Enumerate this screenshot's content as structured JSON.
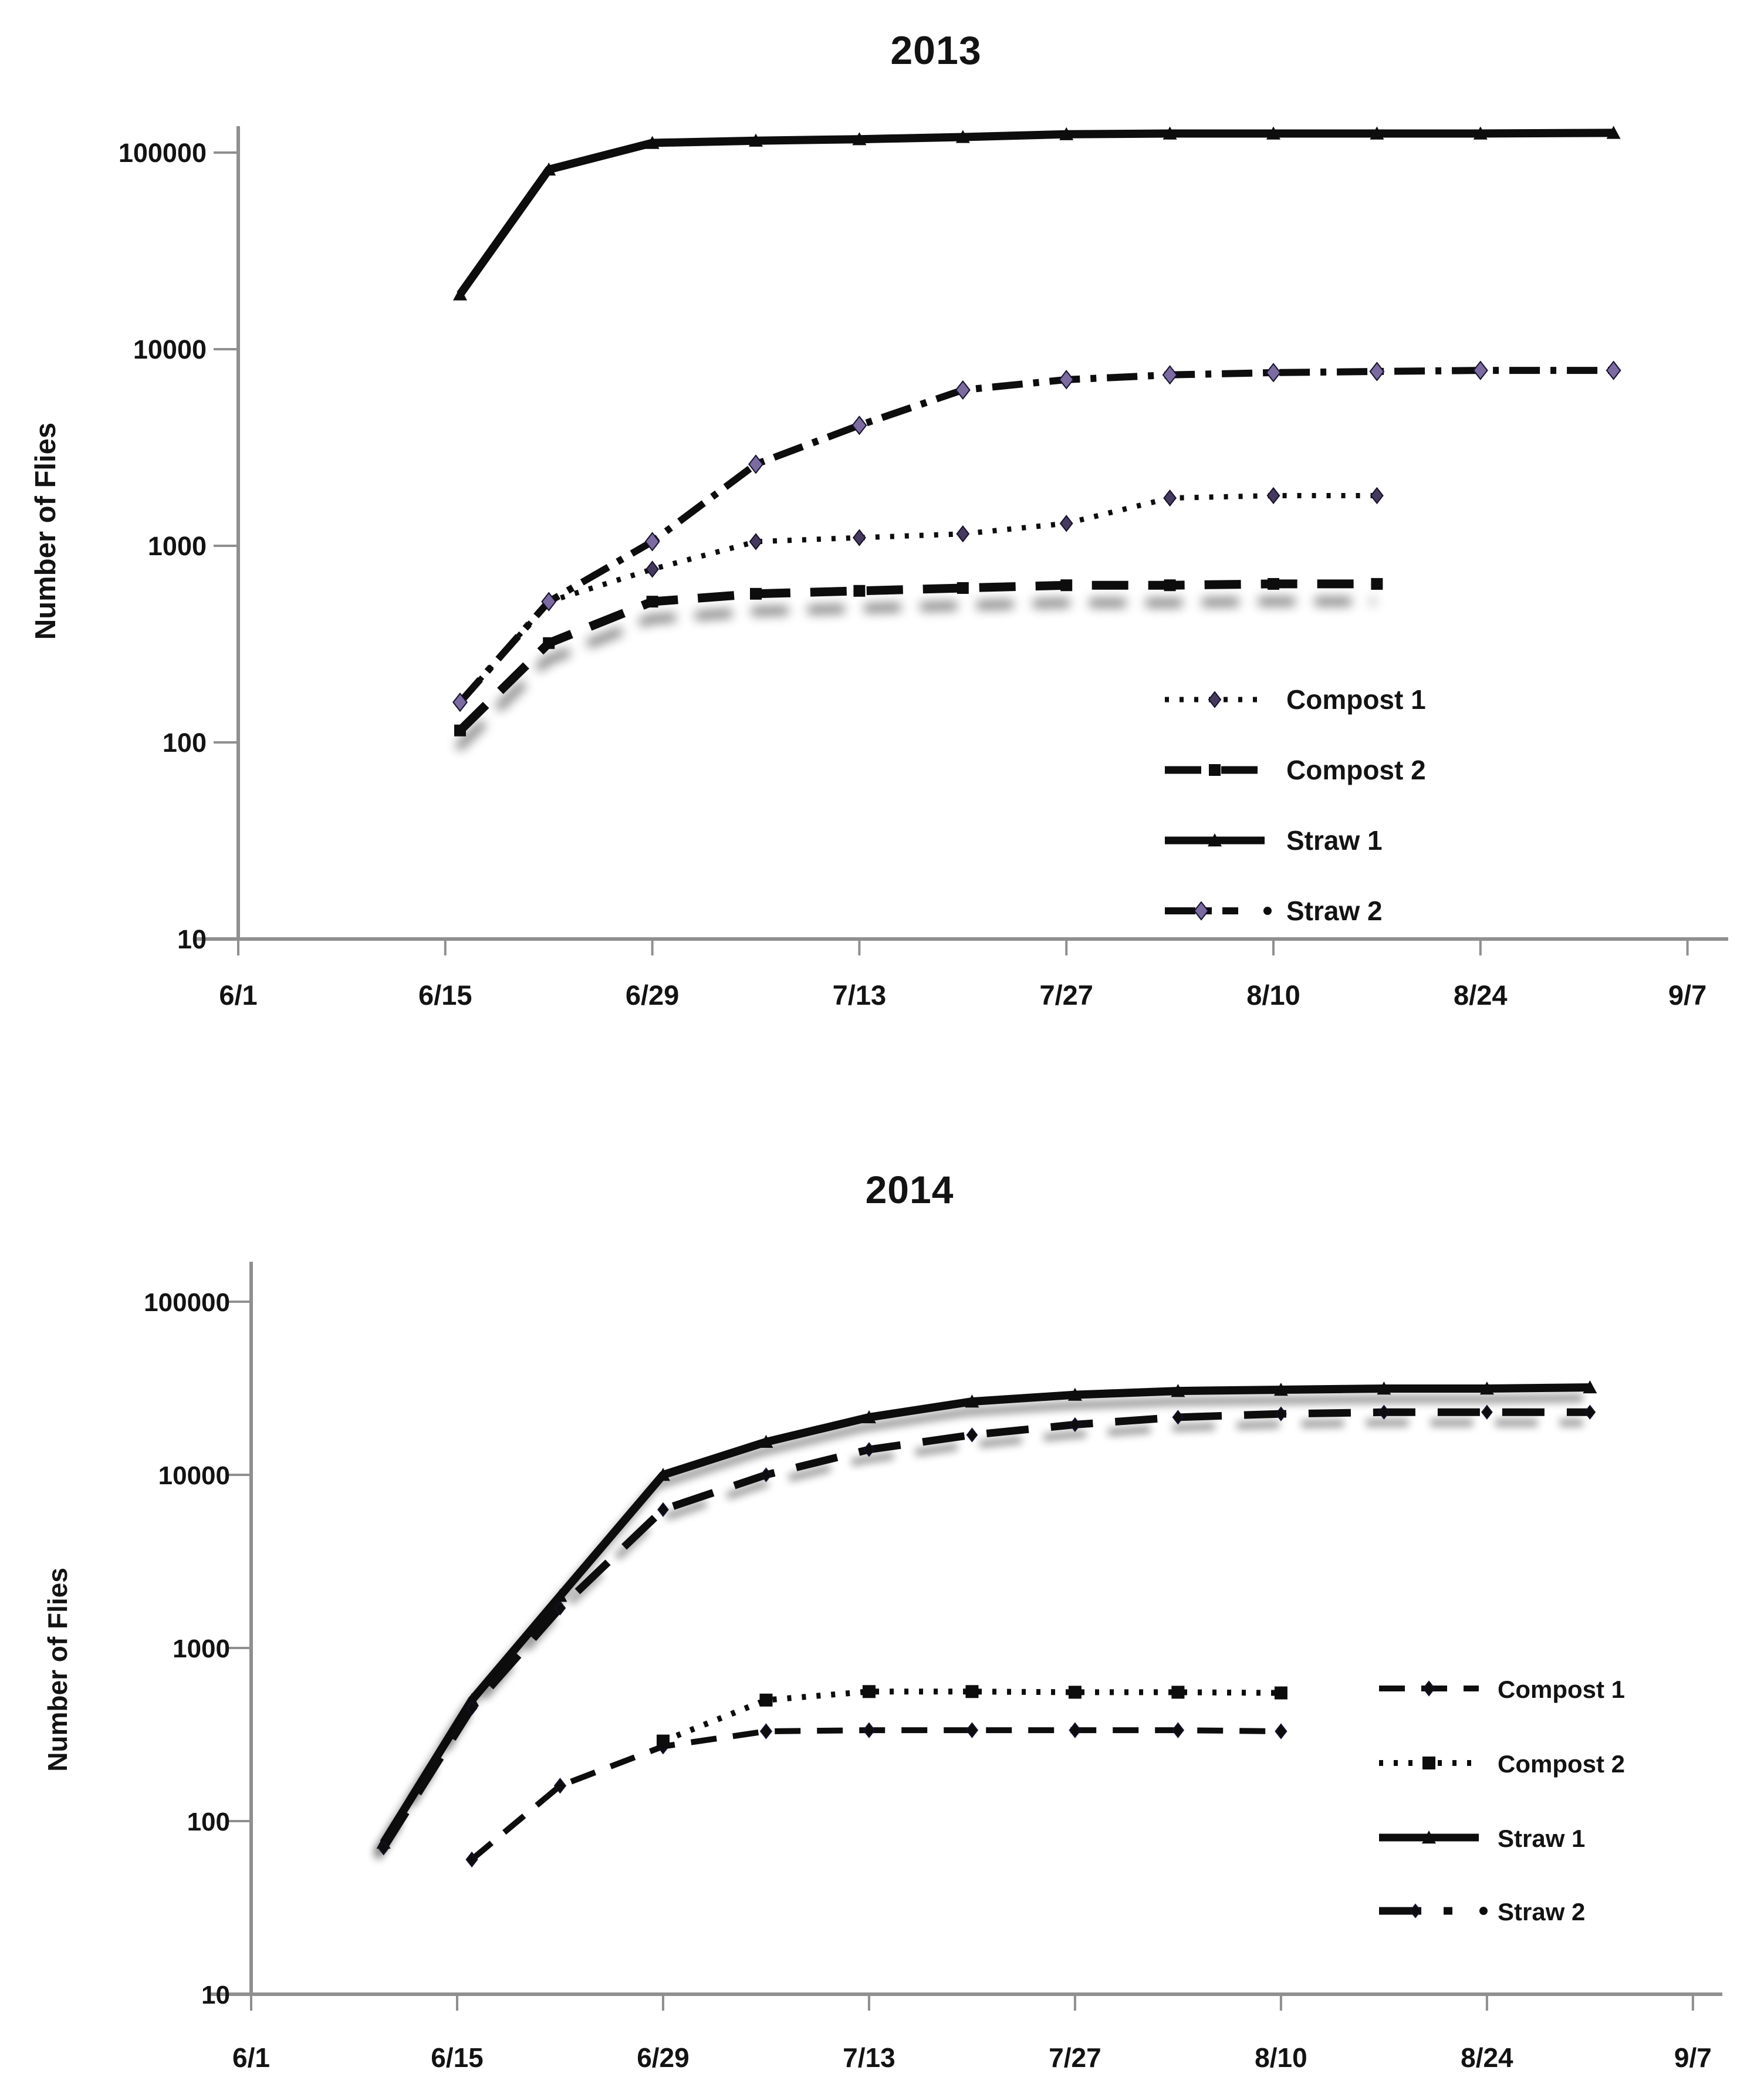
{
  "figure": {
    "background": "#ffffff",
    "axis_color": "#8f8f8f",
    "text_color": "#131313",
    "panel_count": 2
  },
  "chart_data": [
    {
      "type": "line",
      "title": "2013",
      "ylabel": "Number of Flies",
      "xlabel": "",
      "grid": false,
      "legend_position": "inside-right",
      "x_axis": {
        "tick_labels": [
          "6/1",
          "6/15",
          "6/29",
          "7/13",
          "7/27",
          "8/10",
          "8/24",
          "9/7"
        ],
        "tick_days": [
          0,
          14,
          28,
          42,
          56,
          70,
          84,
          98
        ],
        "range_days": [
          0,
          98
        ]
      },
      "y_axis": {
        "scale": "log",
        "tick_labels": [
          "100000",
          "10000",
          "1000",
          "100",
          "10"
        ],
        "tick_values": [
          100000,
          10000,
          1000,
          100,
          10
        ],
        "ylim": [
          10,
          100000
        ]
      },
      "series": [
        {
          "name": "Compost 1",
          "style": "dotted",
          "width": 9,
          "color": "#0d0d0d",
          "marker": "diamond",
          "marker_size": 13,
          "marker_fill": "#453a5e",
          "shadow": false,
          "points": [
            [
              15,
              160
            ],
            [
              21,
              520
            ],
            [
              28,
              760
            ],
            [
              35,
              1050
            ],
            [
              42,
              1100
            ],
            [
              49,
              1150
            ],
            [
              56,
              1300
            ],
            [
              63,
              1750
            ],
            [
              70,
              1800
            ],
            [
              77,
              1800
            ]
          ]
        },
        {
          "name": "Compost 2",
          "style": "dashed",
          "width": 15,
          "color": "#0d0d0d",
          "marker": "square",
          "marker_size": 10,
          "marker_fill": "#0d0d0d",
          "shadow": true,
          "points": [
            [
              15,
              115
            ],
            [
              21,
              320
            ],
            [
              28,
              520
            ],
            [
              35,
              570
            ],
            [
              42,
              590
            ],
            [
              49,
              610
            ],
            [
              56,
              630
            ],
            [
              63,
              630
            ],
            [
              70,
              640
            ],
            [
              77,
              640
            ]
          ]
        },
        {
          "name": "Straw 1",
          "style": "solid",
          "width": 14,
          "color": "#0d0d0d",
          "marker": "triangle",
          "marker_size": 12,
          "marker_fill": "#0d0d0d",
          "shadow": false,
          "points": [
            [
              15,
              19000
            ],
            [
              21,
              82000
            ],
            [
              28,
              112000
            ],
            [
              35,
              115000
            ],
            [
              42,
              117000
            ],
            [
              49,
              120000
            ],
            [
              56,
              124000
            ],
            [
              63,
              125000
            ],
            [
              70,
              125000
            ],
            [
              77,
              125000
            ],
            [
              84,
              125000
            ],
            [
              93,
              126000
            ]
          ]
        },
        {
          "name": "Straw 2",
          "style": "dashdot",
          "width": 12,
          "color": "#0d0d0d",
          "marker": "diamond",
          "marker_size": 15,
          "marker_fill": "#7b6ba1",
          "shadow": false,
          "points": [
            [
              15,
              160
            ],
            [
              21,
              520
            ],
            [
              28,
              1050
            ],
            [
              35,
              2600
            ],
            [
              42,
              4100
            ],
            [
              49,
              6200
            ],
            [
              56,
              7000
            ],
            [
              63,
              7400
            ],
            [
              70,
              7600
            ],
            [
              77,
              7700
            ],
            [
              84,
              7800
            ],
            [
              93,
              7800
            ]
          ]
        }
      ],
      "legend": [
        {
          "label": "Compost 1",
          "series": 0,
          "prefix_dot": false
        },
        {
          "label": "Compost 2",
          "series": 1,
          "prefix_dot": false
        },
        {
          "label": "Straw 1",
          "series": 2,
          "prefix_dot": false
        },
        {
          "label": "Straw 2",
          "series": 3,
          "prefix_dot": true
        }
      ]
    },
    {
      "type": "line",
      "title": "2014",
      "ylabel": "Number of Flies",
      "xlabel": "",
      "grid": false,
      "legend_position": "inside-right",
      "x_axis": {
        "tick_labels": [
          "6/1",
          "6/15",
          "6/29",
          "7/13",
          "7/27",
          "8/10",
          "8/24",
          "9/7"
        ],
        "tick_days": [
          0,
          14,
          28,
          42,
          56,
          70,
          84,
          98
        ],
        "range_days": [
          0,
          98
        ]
      },
      "y_axis": {
        "scale": "log",
        "tick_labels": [
          "100000",
          "10000",
          "1000",
          "100",
          "10"
        ],
        "tick_values": [
          100000,
          10000,
          1000,
          100,
          10
        ],
        "ylim": [
          10,
          100000
        ]
      },
      "series": [
        {
          "name": "Compost 1",
          "style": "dashmid",
          "width": 10,
          "color": "#0d0d0d",
          "marker": "diamond",
          "marker_size": 12,
          "marker_fill": "#0d0d0d",
          "shadow": false,
          "points": [
            [
              15,
              60
            ],
            [
              21,
              160
            ],
            [
              28,
              270
            ],
            [
              35,
              330
            ],
            [
              42,
              335
            ],
            [
              49,
              335
            ],
            [
              56,
              335
            ],
            [
              63,
              335
            ],
            [
              70,
              330
            ]
          ]
        },
        {
          "name": "Compost 2",
          "style": "dotted",
          "width": 10,
          "color": "#0d0d0d",
          "marker": "square",
          "marker_size": 11,
          "marker_fill": "#0d0d0d",
          "shadow": false,
          "points": [
            [
              28,
              290
            ],
            [
              35,
              500
            ],
            [
              42,
              560
            ],
            [
              49,
              560
            ],
            [
              56,
              555
            ],
            [
              63,
              555
            ],
            [
              70,
              550
            ]
          ]
        },
        {
          "name": "Straw 1",
          "style": "solid",
          "width": 14,
          "color": "#0d0d0d",
          "marker": "triangle",
          "marker_size": 12,
          "marker_fill": "#0d0d0d",
          "shadow": true,
          "points": [
            [
              9,
              75
            ],
            [
              15,
              500
            ],
            [
              21,
              2000
            ],
            [
              28,
              10000
            ],
            [
              35,
              15500
            ],
            [
              42,
              21500
            ],
            [
              49,
              26500
            ],
            [
              56,
              29000
            ],
            [
              63,
              30500
            ],
            [
              70,
              31000
            ],
            [
              77,
              31500
            ],
            [
              84,
              31500
            ],
            [
              91,
              32000
            ]
          ]
        },
        {
          "name": "Straw 2",
          "style": "longdash",
          "width": 13,
          "color": "#0d0d0d",
          "marker": "diamond",
          "marker_size": 11,
          "marker_fill": "#0d0d0d",
          "shadow": true,
          "points": [
            [
              9,
              70
            ],
            [
              15,
              450
            ],
            [
              21,
              1700
            ],
            [
              28,
              6300
            ],
            [
              35,
              10000
            ],
            [
              42,
              14000
            ],
            [
              49,
              17000
            ],
            [
              56,
              19500
            ],
            [
              63,
              21500
            ],
            [
              70,
              22500
            ],
            [
              77,
              23000
            ],
            [
              84,
              23000
            ],
            [
              91,
              23000
            ]
          ]
        }
      ],
      "legend": [
        {
          "label": "Compost 1",
          "series": 0,
          "prefix_dot": false
        },
        {
          "label": "Compost 2",
          "series": 1,
          "prefix_dot": false
        },
        {
          "label": "Straw 1",
          "series": 2,
          "prefix_dot": false
        },
        {
          "label": "Straw 2",
          "series": 3,
          "prefix_dot": true
        }
      ]
    }
  ]
}
